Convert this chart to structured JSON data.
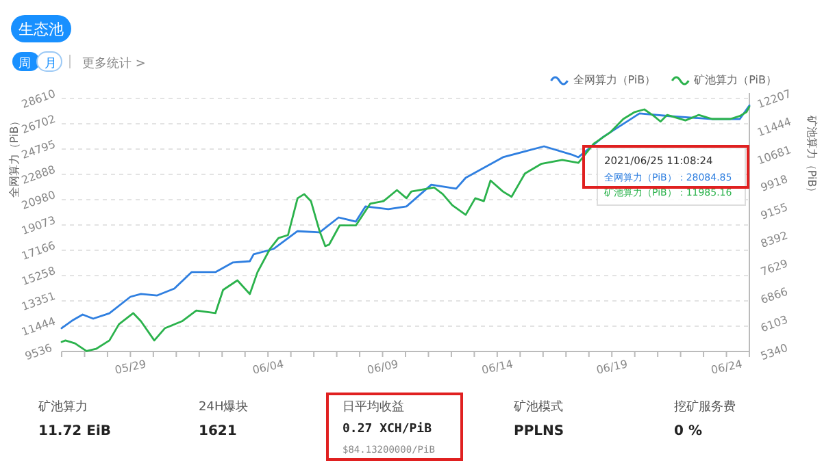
{
  "chart_data": [
    {
      "type": "line",
      "title": "生态池",
      "ylabel": "全网算力（PiB）",
      "y2label": "矿池算力（PiB）",
      "xlim": [
        "2021-05-26",
        "2021-06-25"
      ],
      "xticks": [
        {
          "value": "2021-05-26",
          "label": null
        },
        {
          "value": "2021-05-27",
          "label": null
        },
        {
          "value": "2021-05-28",
          "label": null
        },
        {
          "value": "2021-05-29",
          "label": "05/29"
        },
        {
          "value": "2021-05-30",
          "label": null
        },
        {
          "value": "2021-05-31",
          "label": null
        },
        {
          "value": "2021-06-01",
          "label": null
        },
        {
          "value": "2021-06-02",
          "label": null
        },
        {
          "value": "2021-06-03",
          "label": null
        },
        {
          "value": "2021-06-04",
          "label": "06/04"
        },
        {
          "value": "2021-06-05",
          "label": null
        },
        {
          "value": "2021-06-06",
          "label": null
        },
        {
          "value": "2021-06-07",
          "label": null
        },
        {
          "value": "2021-06-08",
          "label": null
        },
        {
          "value": "2021-06-09",
          "label": "06/09"
        },
        {
          "value": "2021-06-10",
          "label": null
        },
        {
          "value": "2021-06-11",
          "label": null
        },
        {
          "value": "2021-06-12",
          "label": null
        },
        {
          "value": "2021-06-13",
          "label": null
        },
        {
          "value": "2021-06-14",
          "label": "06/14"
        },
        {
          "value": "2021-06-15",
          "label": null
        },
        {
          "value": "2021-06-16",
          "label": null
        },
        {
          "value": "2021-06-17",
          "label": null
        },
        {
          "value": "2021-06-18",
          "label": null
        },
        {
          "value": "2021-06-19",
          "label": "06/19"
        },
        {
          "value": "2021-06-20",
          "label": null
        },
        {
          "value": "2021-06-21",
          "label": null
        },
        {
          "value": "2021-06-22",
          "label": null
        },
        {
          "value": "2021-06-23",
          "label": null
        },
        {
          "value": "2021-06-24",
          "label": "06/24"
        },
        {
          "value": "2021-06-25",
          "label": null
        }
      ],
      "ylim": [
        9536,
        28610
      ],
      "yticks": [
        9536,
        11444,
        13351,
        15258,
        17166,
        19073,
        20980,
        22888,
        24795,
        26702,
        28610
      ],
      "y2lim": [
        5340,
        12207
      ],
      "y2ticks": [
        5340,
        6103,
        6866,
        7629,
        8392,
        9155,
        9918,
        10681,
        11444,
        12207
      ],
      "grid": "y",
      "legend": "top right",
      "annotations": [
        "周",
        "月",
        "更多统计 >",
        "2021/06/25 11:08:24",
        "全网算力（PiB）：28084.85",
        "矿池算力（PiB）：11985.16"
      ],
      "series": [
        {
          "name": "全网算力（PiB）",
          "color": "#2f7fe0",
          "x": [
            "2021-05-26T00:00",
            "2021-05-26T12:00",
            "2021-05-26T22:00",
            "2021-05-27T09:00",
            "2021-05-28T02:00",
            "2021-05-29T00:00",
            "2021-05-29T11:00",
            "2021-05-30T04:00",
            "2021-05-30T22:00",
            "2021-05-31T16:00",
            "2021-06-01T17:00",
            "2021-06-02T11:00",
            "2021-06-03T05:00",
            "2021-06-03T09:00",
            "2021-06-04T06:00",
            "2021-06-05T07:00",
            "2021-06-06T06:00",
            "2021-06-07T02:00",
            "2021-06-07T20:00",
            "2021-06-08T06:00",
            "2021-06-09T06:00",
            "2021-06-10T01:00",
            "2021-06-11T03:00",
            "2021-06-12T05:00",
            "2021-06-12T15:00",
            "2021-06-14T06:00",
            "2021-06-16T01:00",
            "2021-06-17T06:00",
            "2021-06-17T13:00",
            "2021-06-18T15:00",
            "2021-06-20T05:00",
            "2021-06-21T14:00",
            "2021-06-23T09:00",
            "2021-06-24T14:00",
            "2021-06-25T00:00"
          ],
          "values": [
            11290,
            11910,
            12320,
            12010,
            12420,
            13660,
            13870,
            13760,
            14280,
            15520,
            15520,
            16240,
            16340,
            16860,
            17270,
            18610,
            18510,
            19640,
            19330,
            20470,
            20260,
            20470,
            22110,
            21810,
            22630,
            24180,
            25000,
            24380,
            24180,
            25720,
            27480,
            27270,
            27060,
            27060,
            28085
          ]
        },
        {
          "name": "矿池算力（PiB）",
          "color": "#2bb24c",
          "axis": "y2",
          "x": [
            "2021-05-26T00:00",
            "2021-05-26T04:00",
            "2021-05-26T14:00",
            "2021-05-27T02:00",
            "2021-05-27T12:00",
            "2021-05-28T02:00",
            "2021-05-28T12:00",
            "2021-05-29T03:00",
            "2021-05-29T11:00",
            "2021-05-30T01:00",
            "2021-05-30T12:00",
            "2021-05-31T06:00",
            "2021-05-31T21:00",
            "2021-06-01T17:00",
            "2021-06-02T01:00",
            "2021-06-02T16:00",
            "2021-06-03T05:00",
            "2021-06-03T13:00",
            "2021-06-04T02:00",
            "2021-06-04T11:00",
            "2021-06-04T21:00",
            "2021-06-05T07:00",
            "2021-06-05T14:00",
            "2021-06-05T21:00",
            "2021-06-06T06:00",
            "2021-06-06T12:00",
            "2021-06-06T16:00",
            "2021-06-07T03:00",
            "2021-06-07T20:00",
            "2021-06-08T11:00",
            "2021-06-09T01:00",
            "2021-06-09T15:00",
            "2021-06-10T01:00",
            "2021-06-10T06:00",
            "2021-06-11T06:00",
            "2021-06-11T15:00",
            "2021-06-12T01:00",
            "2021-06-12T15:00",
            "2021-06-13T01:00",
            "2021-06-13T10:00",
            "2021-06-13T17:00",
            "2021-06-14T06:00",
            "2021-06-14T15:00",
            "2021-06-15T05:00",
            "2021-06-15T22:00",
            "2021-06-16T20:00",
            "2021-06-17T13:00",
            "2021-06-18T05:00",
            "2021-06-18T22:00",
            "2021-06-19T12:00",
            "2021-06-20T00:00",
            "2021-06-20T10:00",
            "2021-06-20T20:00",
            "2021-06-21T03:00",
            "2021-06-21T10:00",
            "2021-06-22T05:00",
            "2021-06-22T19:00",
            "2021-06-23T09:00",
            "2021-06-24T04:00",
            "2021-06-24T14:00",
            "2021-06-24T21:00",
            "2021-06-25T00:00"
          ],
          "values": [
            5600,
            5640,
            5560,
            5350,
            5410,
            5640,
            6080,
            6380,
            6160,
            5640,
            5970,
            6160,
            6450,
            6380,
            7010,
            7270,
            6900,
            7490,
            8120,
            8420,
            8500,
            9500,
            9610,
            9420,
            8610,
            8200,
            8240,
            8760,
            8760,
            9350,
            9420,
            9720,
            9500,
            9680,
            9790,
            9610,
            9310,
            9050,
            9500,
            9420,
            9980,
            9680,
            9540,
            10170,
            10430,
            10540,
            10460,
            10980,
            11280,
            11650,
            11840,
            11910,
            11730,
            11580,
            11760,
            11610,
            11760,
            11650,
            11650,
            11730,
            11840,
            11985
          ]
        }
      ]
    },
    {
      "type": "other",
      "annotations": [
        "矿池算力",
        "11.72 EiB",
        "24H爆块",
        "1621",
        "日平均收益",
        "0.27 XCH/PiB",
        "$84.13200000/PiB",
        "矿池模式",
        "PPLNS",
        "挖矿服务费",
        "0 %"
      ]
    }
  ]
}
